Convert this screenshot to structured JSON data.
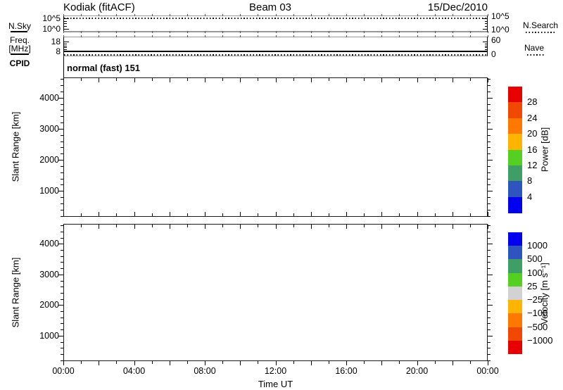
{
  "header": {
    "title": "Kodiak (fitACF)",
    "beam": "Beam 03",
    "date": "15/Dec/2010"
  },
  "noise_panel": {
    "left_label": "N.Sky",
    "left_ticks": [
      "10^5",
      "10^0"
    ],
    "right_ticks": [
      "10^5",
      "10^0"
    ],
    "right_label": "N.Search"
  },
  "freq_panel": {
    "left_label_line1": "Freq.",
    "left_label_line2": "[MHz]",
    "left_ticks": [
      "18",
      "8"
    ],
    "right_ticks": [
      "60",
      "0"
    ],
    "right_label": "Nave"
  },
  "cpid": {
    "label": "CPID",
    "value": "normal (fast) 151"
  },
  "power_panel": {
    "ylabel": "Slant Range [km]",
    "yticks": [
      "4000",
      "3000",
      "2000",
      "1000"
    ]
  },
  "velocity_panel": {
    "ylabel": "Slant Range [km]",
    "yticks": [
      "4000",
      "3000",
      "2000",
      "1000"
    ]
  },
  "xaxis": {
    "labels": [
      "00:00",
      "04:00",
      "08:00",
      "12:00",
      "16:00",
      "20:00",
      "00:00"
    ],
    "title": "Time UT"
  },
  "power_colorbar": {
    "title": "Power [dB]",
    "labels": [
      "28",
      "24",
      "20",
      "16",
      "12",
      "8",
      "4"
    ],
    "colors": [
      "#e80000",
      "#f04800",
      "#ff7800",
      "#ffb400",
      "#55d022",
      "#3f9e63",
      "#2d55bd",
      "#0000f0"
    ]
  },
  "velocity_colorbar": {
    "title": "Velocity [m s⁻¹]",
    "labels": [
      "1000",
      "500",
      "100",
      "25",
      "−25",
      "−100",
      "−500",
      "−1000"
    ],
    "colors": [
      "#0000f0",
      "#2d55bd",
      "#3f9e63",
      "#55d022",
      "#d2d2d2",
      "#ffb400",
      "#ff7800",
      "#f04800",
      "#e80000"
    ]
  },
  "chart_data": [
    {
      "type": "line",
      "panel": "noise",
      "left_axis_label": "N.Sky",
      "left_tick_labels": [
        "10^0",
        "10^5"
      ],
      "right_axis_label": "N.Search",
      "right_tick_labels": [
        "10^0",
        "10^5"
      ],
      "x_range_hours": [
        0,
        24
      ],
      "series": [
        {
          "name": "N.Sky",
          "line_style": "solid",
          "values": "constant ≈10^5 across 00:00–24:00 (flat line at top of panel)"
        },
        {
          "name": "N.Search",
          "line_style": "dotted",
          "values": "constant ≈10^5 across 00:00–24:00 (flat dotted line at top of panel)"
        }
      ]
    },
    {
      "type": "line",
      "panel": "frequency",
      "left_axis_label": "Freq. [MHz]",
      "left_tick_labels": [
        8,
        18
      ],
      "right_axis_label": "Nave",
      "right_tick_labels": [
        0,
        60
      ],
      "x_range_hours": [
        0,
        24
      ],
      "series": [
        {
          "name": "Freq",
          "line_style": "solid",
          "values": "constant ≈9 MHz across 00:00–24:00"
        },
        {
          "name": "Nave",
          "line_style": "dotted",
          "values": "constant ≈0 across 00:00–24:00"
        }
      ]
    },
    {
      "type": "scatter",
      "panel": "power",
      "ylabel": "Slant Range [km]",
      "ylim": [
        170,
        4650
      ],
      "yticks": [
        1000,
        2000,
        3000,
        4000
      ],
      "x_range_hours": [
        0,
        24
      ],
      "colorbar": {
        "label": "Power [dB]",
        "boundaries": [
          4,
          8,
          12,
          16,
          20,
          24,
          28
        ]
      },
      "points": []
    },
    {
      "type": "scatter",
      "panel": "velocity",
      "ylabel": "Slant Range [km]",
      "ylim": [
        170,
        4650
      ],
      "yticks": [
        1000,
        2000,
        3000,
        4000
      ],
      "x_range_hours": [
        0,
        24
      ],
      "colorbar": {
        "label": "Velocity [m s−1]",
        "boundaries": [
          -1000,
          -500,
          -100,
          -25,
          25,
          100,
          500,
          1000
        ]
      },
      "points": []
    }
  ]
}
